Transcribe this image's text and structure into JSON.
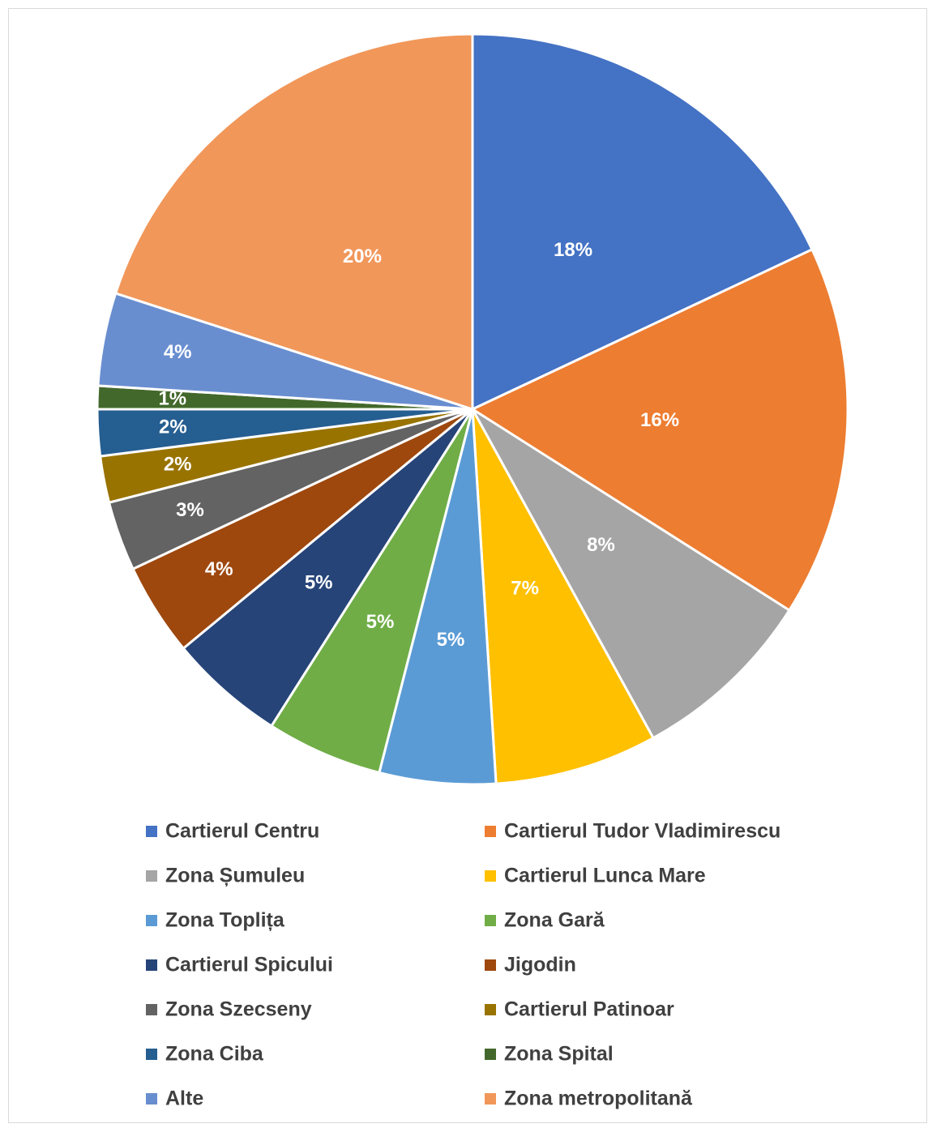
{
  "chart_data": {
    "type": "pie",
    "categories": [
      "Cartierul Centru",
      "Cartierul Tudor Vladimirescu",
      "Zona Șumuleu",
      "Cartierul Lunca Mare",
      "Zona Toplița",
      "Zona Gară",
      "Cartierul Spicului",
      "Jigodin",
      "Zona Szecseny",
      "Cartierul Patinoar",
      "Zona Ciba",
      "Zona Spital",
      "Alte",
      "Zona metropolitană"
    ],
    "values": [
      18,
      16,
      8,
      7,
      5,
      5,
      5,
      4,
      3,
      2,
      2,
      1,
      4,
      20
    ],
    "value_labels": [
      "18%",
      "16%",
      "8%",
      "7%",
      "5%",
      "5%",
      "5%",
      "4%",
      "3%",
      "2%",
      "2%",
      "1%",
      "4%",
      "20%"
    ],
    "colors": [
      "#4472C4",
      "#ED7D31",
      "#A5A5A5",
      "#FFC000",
      "#5B9BD5",
      "#70AD47",
      "#264478",
      "#9E480E",
      "#636363",
      "#997300",
      "#255E91",
      "#43682B",
      "#698ED0",
      "#F1975A"
    ],
    "legend": "bottom"
  }
}
